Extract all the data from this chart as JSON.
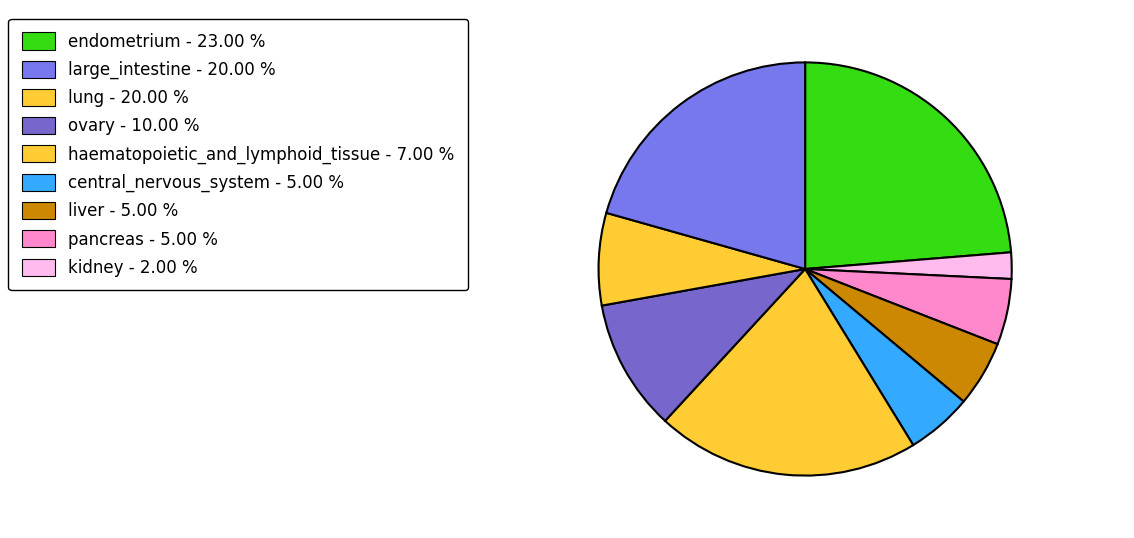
{
  "labels": [
    "endometrium",
    "large_intestine",
    "lung",
    "ovary",
    "haematopoietic_and_lymphoid_tissue",
    "central_nervous_system",
    "liver",
    "pancreas",
    "kidney"
  ],
  "values": [
    23,
    20,
    20,
    10,
    7,
    5,
    5,
    5,
    2
  ],
  "colors": [
    "#33dd11",
    "#7777ee",
    "#ffcc33",
    "#7766cc",
    "#ffcc33",
    "#33aaff",
    "#cc8800",
    "#ff88cc",
    "#ffbbee"
  ],
  "legend_labels": [
    "endometrium - 23.00 %",
    "large_intestine - 20.00 %",
    "lung - 20.00 %",
    "ovary - 10.00 %",
    "haematopoietic_and_lymphoid_tissue - 7.00 %",
    "central_nervous_system - 5.00 %",
    "liver - 5.00 %",
    "pancreas - 5.00 %",
    "kidney - 2.00 %"
  ],
  "figsize": [
    11.34,
    5.38
  ],
  "dpi": 100,
  "legend_fontsize": 12
}
